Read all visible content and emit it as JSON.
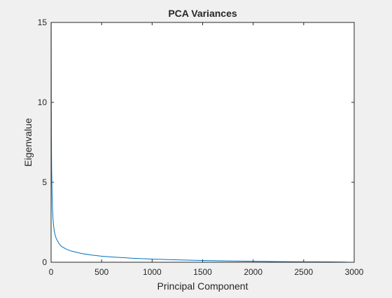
{
  "chart_data": {
    "type": "line",
    "title": "PCA Variances",
    "xlabel": "Principal Component",
    "ylabel": "Eigenvalue",
    "xlim": [
      0,
      3000
    ],
    "ylim": [
      0,
      15
    ],
    "xticks": [
      0,
      500,
      1000,
      1500,
      2000,
      2500,
      3000
    ],
    "yticks": [
      0,
      5,
      10,
      15
    ],
    "grid": false,
    "series": [
      {
        "color": "#0072bd",
        "x": [
          1,
          2,
          3,
          5,
          10,
          15,
          20,
          30,
          40,
          50,
          75,
          100,
          150,
          200,
          300,
          400,
          500,
          600,
          800,
          1000,
          1250,
          1500,
          1750,
          2000,
          2250,
          2500,
          2750,
          2900,
          2950
        ],
        "y": [
          15,
          11,
          8,
          6,
          4.2,
          3.2,
          2.6,
          2.0,
          1.7,
          1.5,
          1.2,
          1.0,
          0.82,
          0.7,
          0.55,
          0.45,
          0.38,
          0.33,
          0.25,
          0.2,
          0.15,
          0.11,
          0.08,
          0.06,
          0.04,
          0.03,
          0.02,
          0.01,
          0.0
        ]
      }
    ]
  }
}
